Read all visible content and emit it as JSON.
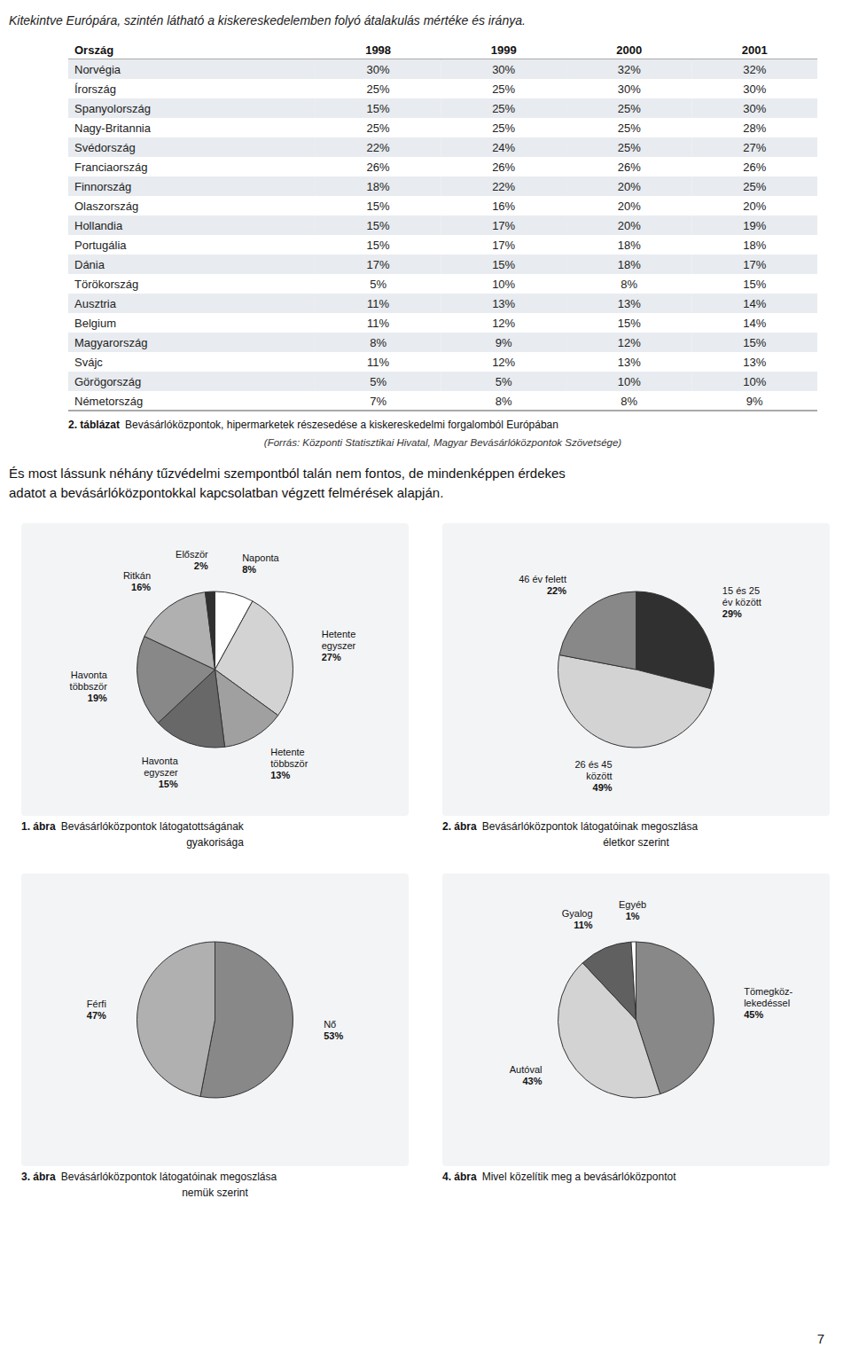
{
  "chart_data": [
    {
      "type": "table",
      "title": "2. táblázat",
      "subtitle": "Bevásárlóközpontok, hipermarketek részesedése a kiskereskedelmi forgalomból Európában",
      "annotations": [
        "Kitekintve Európára, szintén látható a kiskereskedelemben folyó átalakulás mértéke és iránya.",
        "(Forrás: Központi Statisztikai Hivatal, Magyar Bevásárlóközpontok Szövetsége)",
        "És most lássunk néhány tűzvédelmi szempontból talán nem fontos, de mindenképpen érdekes",
        "adatot a bevásárlóközpontokkal kapcsolatban végzett felmérések alapján.",
        "7"
      ],
      "x_label": "Ország",
      "categories": [
        "Norvégia",
        "Írország",
        "Spanyolország",
        "Nagy-Britannia",
        "Svédország",
        "Franciaország",
        "Finnország",
        "Olaszország",
        "Hollandia",
        "Portugália",
        "Dánia",
        "Törökország",
        "Ausztria",
        "Belgium",
        "Magyarország",
        "Svájc",
        "Görögország",
        "Németország"
      ],
      "data_labels": true,
      "series": [
        {
          "name": "1998",
          "values": [
            30,
            25,
            15,
            25,
            22,
            26,
            18,
            15,
            15,
            15,
            17,
            5,
            11,
            11,
            8,
            11,
            5,
            7
          ],
          "value_labels": [
            "30%",
            "25%",
            "15%",
            "25%",
            "22%",
            "26%",
            "18%",
            "15%",
            "15%",
            "15%",
            "17%",
            "5%",
            "11%",
            "11%",
            "8%",
            "11%",
            "5%",
            "7%"
          ]
        },
        {
          "name": "1999",
          "values": [
            30,
            25,
            25,
            25,
            24,
            26,
            22,
            16,
            17,
            17,
            15,
            10,
            13,
            12,
            9,
            12,
            5,
            8
          ],
          "value_labels": [
            "30%",
            "25%",
            "25%",
            "25%",
            "24%",
            "26%",
            "22%",
            "16%",
            "17%",
            "17%",
            "15%",
            "10%",
            "13%",
            "12%",
            "9%",
            "12%",
            "5%",
            "8%"
          ]
        },
        {
          "name": "2000",
          "values": [
            32,
            30,
            25,
            25,
            25,
            26,
            20,
            20,
            20,
            18,
            18,
            8,
            13,
            15,
            12,
            13,
            10,
            8
          ],
          "value_labels": [
            "32%",
            "30%",
            "25%",
            "25%",
            "25%",
            "26%",
            "20%",
            "20%",
            "20%",
            "18%",
            "18%",
            "8%",
            "13%",
            "15%",
            "12%",
            "13%",
            "10%",
            "8%"
          ]
        },
        {
          "name": "2001",
          "values": [
            32,
            30,
            30,
            28,
            27,
            26,
            25,
            20,
            19,
            18,
            17,
            15,
            14,
            14,
            15,
            13,
            10,
            9
          ],
          "value_labels": [
            "32%",
            "30%",
            "30%",
            "28%",
            "27%",
            "26%",
            "25%",
            "20%",
            "19%",
            "18%",
            "17%",
            "15%",
            "14%",
            "14%",
            "15%",
            "13%",
            "10%",
            "9%"
          ]
        }
      ]
    },
    {
      "type": "pie",
      "title": "1. ábra",
      "subtitle": "Bevásárlóközpontok látogatottságának",
      "annotations": [
        "gyakorisága"
      ],
      "categories": [
        "Naponta",
        "Hetente\negyszer",
        "Hetente\ntöbbször",
        "Havonta\negyszer",
        "Havonta\ntöbbször",
        "Ritkán",
        "Először"
      ],
      "values": [
        8,
        27,
        13,
        15,
        19,
        16,
        2
      ],
      "value_labels": [
        "8%",
        "27%",
        "13%",
        "15%",
        "19%",
        "16%",
        "2%"
      ],
      "colors": [
        "#ffffff",
        "#d3d3d3",
        "#a0a0a0",
        "#686868",
        "#888888",
        "#b0b0b0",
        "#303030"
      ],
      "data_labels": true
    },
    {
      "type": "pie",
      "title": "2. ábra",
      "subtitle": "Bevásárlóközpontok látogatóinak megoszlása",
      "annotations": [
        "életkor szerint"
      ],
      "categories": [
        "15 és 25\név között",
        "26 és 45\nközött",
        "46 év felett"
      ],
      "values": [
        29,
        49,
        22
      ],
      "value_labels": [
        "29%",
        "49%",
        "22%"
      ],
      "colors": [
        "#303030",
        "#d3d3d3",
        "#888888"
      ],
      "data_labels": true
    },
    {
      "type": "pie",
      "title": "3. ábra",
      "subtitle": "Bevásárlóközpontok látogatóinak megoszlása",
      "annotations": [
        "nemük szerint"
      ],
      "categories": [
        "Nő",
        "Férfi"
      ],
      "values": [
        53,
        47
      ],
      "value_labels": [
        "53%",
        "47%"
      ],
      "colors": [
        "#888888",
        "#b0b0b0"
      ],
      "data_labels": true
    },
    {
      "type": "pie",
      "title": "4. ábra",
      "subtitle": "Mivel közelítik meg a bevásárlóközpontot",
      "categories": [
        "Tömegköz-\nlekedéssel",
        "Autóval",
        "Gyalog",
        "Egyéb"
      ],
      "values": [
        45,
        43,
        11,
        1
      ],
      "value_labels": [
        "45%",
        "43%",
        "11%",
        "1%"
      ],
      "colors": [
        "#888888",
        "#d3d3d3",
        "#606060",
        "#ffffff"
      ],
      "data_labels": true
    }
  ]
}
